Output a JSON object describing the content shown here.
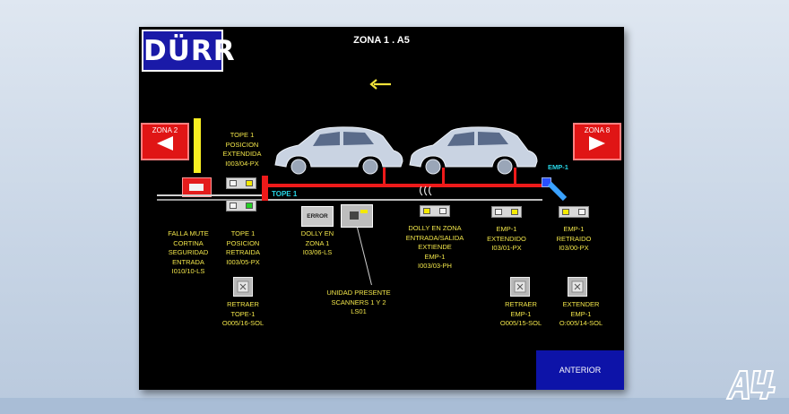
{
  "header": {
    "logo": "DÜRR",
    "title": "ZONA 1 . A5"
  },
  "nav": {
    "zone_left": "ZONA 2",
    "zone_right": "ZONA 8",
    "anterior": "ANTERIOR"
  },
  "conveyor": {
    "label": "TOPE 1",
    "emp_label": "EMP-1"
  },
  "signals": {
    "tope_extendida": [
      "TOPE 1",
      "POSICION",
      "EXTENDIDA",
      "I003/04-PX"
    ],
    "falla_mute": [
      "FALLA MUTE",
      "CORTINA",
      "SEGURIDAD",
      "ENTRADA",
      "I010/10-LS"
    ],
    "tope_retraida": [
      "TOPE 1",
      "POSICION",
      "RETRAIDA",
      "I003/05-PX"
    ],
    "error_label": "ERROR",
    "dolly_zona": [
      "DOLLY EN",
      "ZONA 1",
      "I03/06-LS"
    ],
    "unidad_presente": [
      "UNIDAD PRESENTE",
      "SCANNERS 1 Y 2",
      "LS01"
    ],
    "dolly_entrada": [
      "DOLLY EN ZONA",
      "ENTRADA/SALIDA",
      "EXTIENDE",
      "EMP-1",
      "I003/03-PH"
    ],
    "emp_extendido": [
      "EMP-1",
      "EXTENDIDO",
      "I03/01-PX"
    ],
    "emp_retraido": [
      "EMP-1",
      "RETRAIDO",
      "I03/00-PX"
    ]
  },
  "commands": {
    "retraer_tope": [
      "RETRAER",
      "TOPE-1",
      "O005/16-SOL"
    ],
    "retraer_emp": [
      "RETRAER",
      "EMP-1",
      "O005/15-SOL"
    ],
    "extender_emp": [
      "EXTENDER",
      "EMP-1",
      "O:005/14-SOL"
    ]
  },
  "watermark": "A4"
}
